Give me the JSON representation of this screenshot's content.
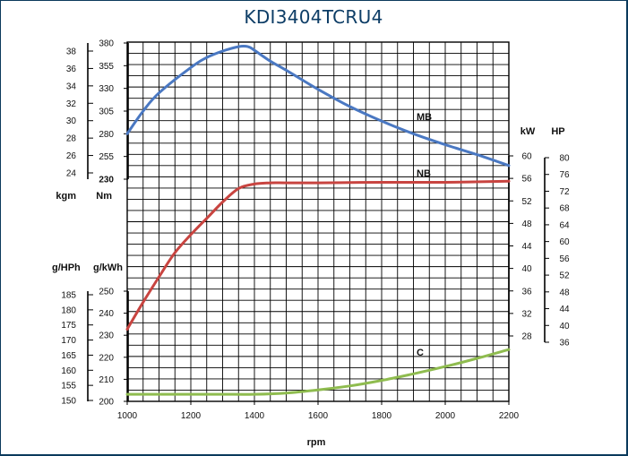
{
  "title": "KDI3404TCRU4",
  "chart_data": {
    "type": "line",
    "title": "KDI3404TCRU4",
    "xlabel": "rpm",
    "x_ticks": [
      1000,
      1200,
      1400,
      1600,
      1800,
      2000,
      2200
    ],
    "xlim": [
      1000,
      2200
    ],
    "grid": true,
    "axes": {
      "kgm": {
        "label": "kgm",
        "ticks": [
          24,
          26,
          28,
          30,
          32,
          34,
          36,
          38
        ]
      },
      "Nm": {
        "label": "Nm",
        "ticks": [
          230,
          255,
          280,
          305,
          330,
          355,
          380
        ],
        "range": [
          230,
          380
        ]
      },
      "g_HPh": {
        "label": "g/HPh",
        "ticks": [
          150,
          155,
          160,
          165,
          170,
          175,
          180,
          185
        ]
      },
      "g_kWh": {
        "label": "g/kWh",
        "ticks": [
          200,
          210,
          220,
          230,
          240,
          250
        ],
        "range": [
          200,
          250
        ]
      },
      "kW": {
        "label": "kW",
        "ticks": [
          28,
          32,
          36,
          40,
          44,
          48,
          52,
          56,
          60
        ],
        "range": [
          28,
          60
        ]
      },
      "HP": {
        "label": "HP",
        "ticks": [
          36,
          40,
          44,
          48,
          52,
          56,
          60,
          64,
          68,
          72,
          76,
          80
        ]
      }
    },
    "series": [
      {
        "name": "MB",
        "axis": "Nm",
        "color": "#4a78c2",
        "x": [
          1000,
          1050,
          1100,
          1200,
          1250,
          1300,
          1350,
          1380,
          1400,
          1450,
          1500,
          1600,
          1700,
          1800,
          1900,
          2000,
          2100,
          2200
        ],
        "y": [
          280,
          305,
          325,
          353,
          364,
          371,
          376,
          376,
          372,
          360,
          350,
          329,
          310,
          294,
          280,
          268,
          257,
          245
        ]
      },
      {
        "name": "NB",
        "axis": "kW",
        "color": "#c84440",
        "x": [
          1000,
          1050,
          1100,
          1150,
          1200,
          1250,
          1300,
          1350,
          1400,
          1450,
          1500,
          1600,
          1800,
          2000,
          2200
        ],
        "y": [
          29.2,
          34.0,
          38.5,
          42.8,
          46.0,
          48.9,
          51.8,
          54.2,
          55.0,
          55.2,
          55.2,
          55.2,
          55.3,
          55.3,
          55.5
        ]
      },
      {
        "name": "C",
        "axis": "g_kWh",
        "color": "#8fbc4f",
        "x": [
          1000,
          1200,
          1300,
          1400,
          1500,
          1600,
          1700,
          1800,
          1900,
          2000,
          2100,
          2200
        ],
        "y": [
          203.2,
          203.2,
          203.2,
          203.2,
          203.8,
          205.2,
          207.0,
          209.5,
          212.5,
          215.8,
          219.5,
          223.5
        ]
      }
    ]
  }
}
